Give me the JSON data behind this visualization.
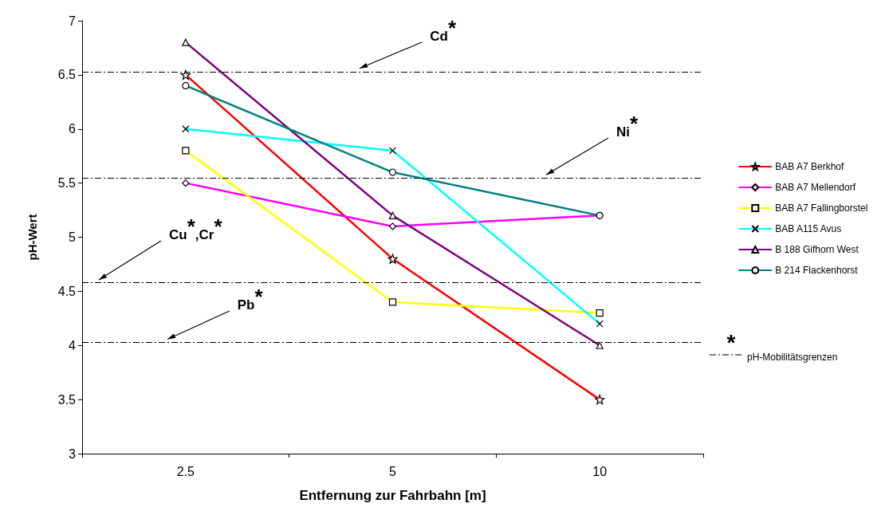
{
  "chart_data": {
    "type": "line",
    "xlabel": "Entfernung zur Fahrbahn [m]",
    "ylabel": "pH-Wert",
    "categories": [
      "2.5",
      "5",
      "10"
    ],
    "series": [
      {
        "name": "BAB A7 Berkhof",
        "color": "#ff0000",
        "marker": "star",
        "values": [
          6.5,
          4.8,
          3.5
        ]
      },
      {
        "name": "BAB A7 Mellendorf",
        "color": "#ff00ff",
        "marker": "diamond",
        "values": [
          5.5,
          5.1,
          5.2
        ]
      },
      {
        "name": "BAB A7 Fallingborstel",
        "color": "#ffff00",
        "marker": "square",
        "values": [
          5.8,
          4.4,
          4.3
        ]
      },
      {
        "name": "BAB A115 Avus",
        "color": "#00ffff",
        "marker": "cross",
        "values": [
          6.0,
          5.8,
          4.2
        ]
      },
      {
        "name": "B 188 Gifhorn West",
        "color": "#800080",
        "marker": "triangle",
        "values": [
          6.8,
          5.2,
          4.0
        ]
      },
      {
        "name": "B 214 Flackenhorst",
        "color": "#008080",
        "marker": "circle",
        "values": [
          6.4,
          5.6,
          5.2
        ]
      }
    ],
    "ylim": [
      3,
      7
    ],
    "yticks": [
      3,
      3.5,
      4,
      4.5,
      5,
      5.5,
      6,
      6.5,
      7
    ],
    "grid": false,
    "legend": "right",
    "ref_lines": [
      {
        "axis": "y",
        "value": 6.53,
        "label": "Cd$^{*}$",
        "line_style": "dashdot",
        "color": "#000000"
      },
      {
        "axis": "y",
        "value": 5.55,
        "label": "Ni$^{*}$",
        "line_style": "dashdot",
        "color": "#000000"
      },
      {
        "axis": "y",
        "value": 4.58,
        "label": "Cu$^{*}$,Cr$^{*}$",
        "line_style": "dashdot",
        "color": "#000000"
      },
      {
        "axis": "y",
        "value": 4.03,
        "label": "Pb$^{*}$",
        "line_style": "dashdot",
        "color": "#000000"
      }
    ],
    "annotations": [
      "*",
      "pH-Mobilitätsgrenzen"
    ]
  }
}
